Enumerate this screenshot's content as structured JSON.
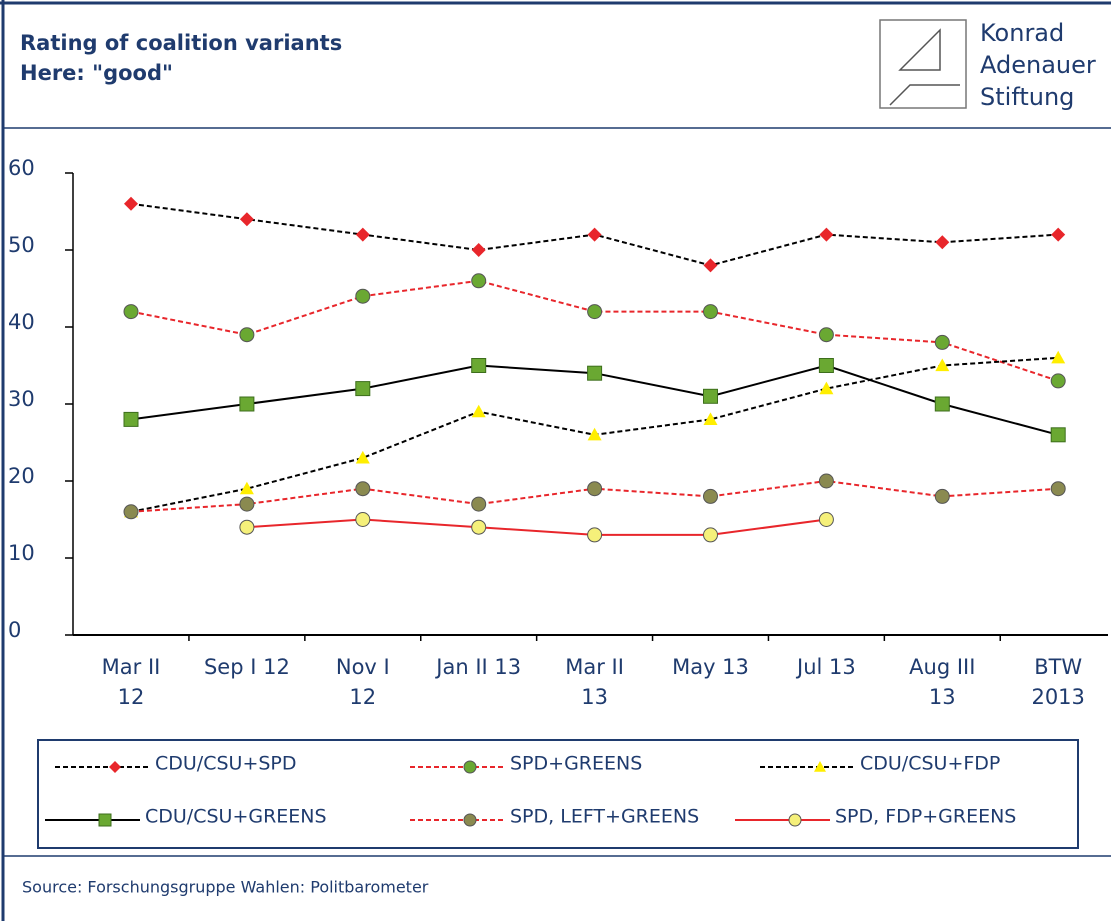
{
  "chart_data": {
    "type": "line",
    "title": "Rating of coalition variants",
    "subtitle": "Here: \"good\"",
    "logo": [
      "Konrad",
      "Adenauer",
      "Stiftung"
    ],
    "source": "Source: Forschungsgruppe Wahlen: Politbarometer",
    "categories": [
      "Mar II 12",
      "Sep I 12",
      "Nov I 12",
      "Jan II 13",
      "Mar II 13",
      "May 13",
      "Jul 13",
      "Aug III 13",
      "BTW 2013"
    ],
    "ylim": [
      0,
      60
    ],
    "yticks": [
      0,
      10,
      20,
      30,
      40,
      50,
      60
    ],
    "series": [
      {
        "name": "CDU/CSU+SPD",
        "color": "#000000",
        "dash": true,
        "marker": "diamond",
        "marker_color": "#e8262b",
        "values": [
          56,
          54,
          52,
          50,
          52,
          48,
          52,
          51,
          52
        ]
      },
      {
        "name": "SPD+GREENS",
        "color": "#e8262b",
        "dash": true,
        "marker": "circle",
        "marker_color": "#6aa832",
        "values": [
          42,
          39,
          44,
          46,
          42,
          42,
          39,
          38,
          33
        ]
      },
      {
        "name": "CDU/CSU+FDP",
        "color": "#000000",
        "dash": true,
        "marker": "triangle",
        "marker_color": "#ffee00",
        "values": [
          16,
          19,
          23,
          29,
          26,
          28,
          32,
          35,
          36
        ]
      },
      {
        "name": "CDU/CSU+GREENS",
        "color": "#000000",
        "dash": false,
        "marker": "square",
        "marker_color": "#6aa832",
        "values": [
          28,
          30,
          32,
          35,
          34,
          31,
          35,
          30,
          26
        ]
      },
      {
        "name": "SPD, LEFT+GREENS",
        "color": "#e8262b",
        "dash": true,
        "marker": "circle",
        "marker_color": "#8a8a50",
        "values": [
          16,
          17,
          19,
          17,
          19,
          18,
          20,
          18,
          19
        ]
      },
      {
        "name": "SPD, FDP+GREENS",
        "color": "#e8262b",
        "dash": false,
        "marker": "circle",
        "marker_color": "#f5f07a",
        "values": [
          null,
          14,
          15,
          14,
          13,
          13,
          15,
          null,
          null
        ]
      }
    ]
  }
}
